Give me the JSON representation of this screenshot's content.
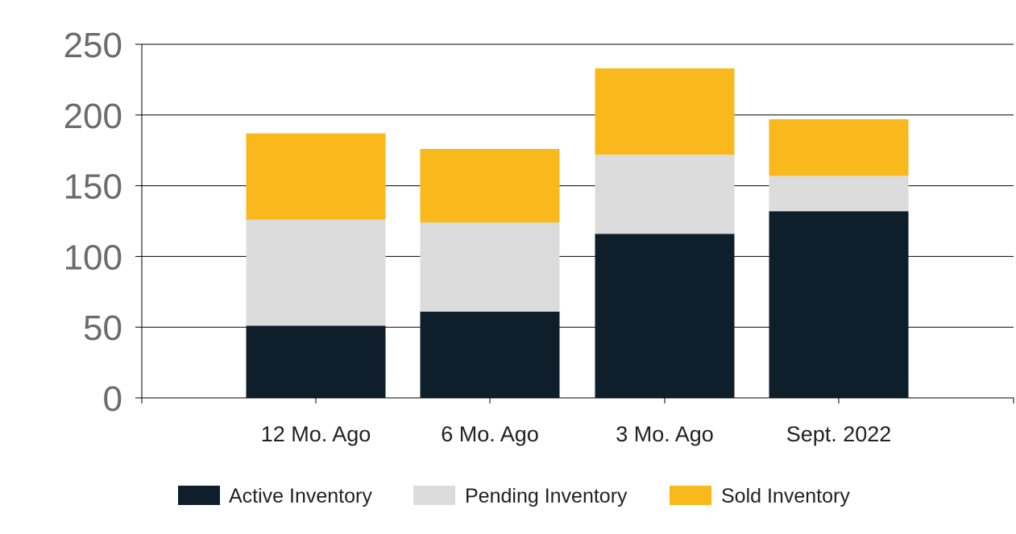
{
  "chart_data": {
    "type": "bar",
    "stacked": true,
    "categories": [
      "12 Mo. Ago",
      "6 Mo. Ago",
      "3 Mo. Ago",
      "Sept. 2022"
    ],
    "series": [
      {
        "name": "Active Inventory",
        "values": [
          51,
          61,
          116,
          132
        ],
        "color": "#0e1f2b"
      },
      {
        "name": "Pending Inventory",
        "values": [
          75,
          63,
          56,
          25
        ],
        "color": "#dcdcdc"
      },
      {
        "name": "Sold Inventory",
        "values": [
          61,
          52,
          61,
          40
        ],
        "color": "#f9b81b"
      }
    ],
    "ylim": [
      0,
      250
    ],
    "yticks": [
      "0",
      "50",
      "100",
      "150",
      "200",
      "250"
    ],
    "grid": true,
    "legend_position": "bottom",
    "title": "",
    "xlabel": "",
    "ylabel": ""
  }
}
